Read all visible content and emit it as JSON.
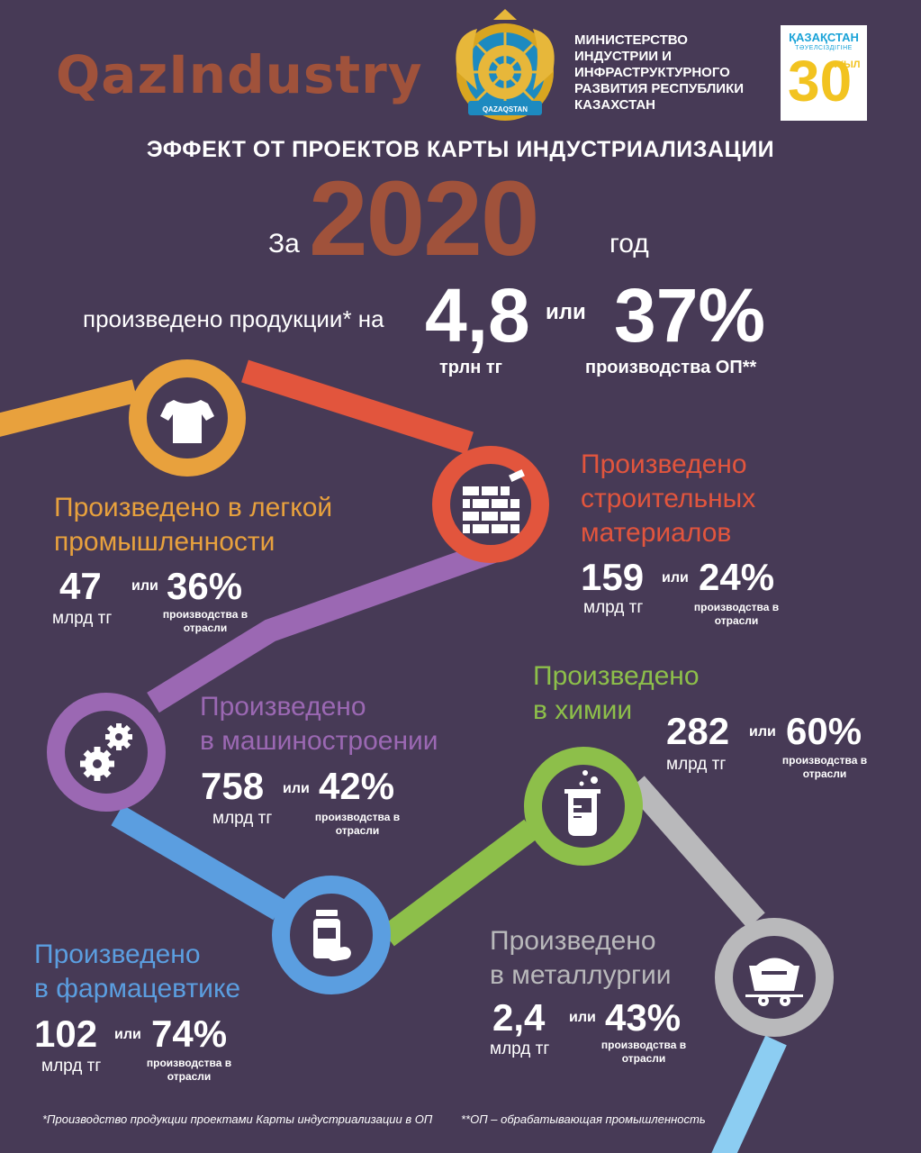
{
  "brand": {
    "logo_text": "QazIndustry"
  },
  "ministry": {
    "name": "МИНИСТЕРСТВО ИНДУСТРИИ И ИНФРАСТРУКТУРНОГО РАЗВИТИЯ РЕСПУБЛИКИ КАЗАХСТАН"
  },
  "emblem": {
    "ribbon_text": "QAZAQSTAN"
  },
  "jubilee": {
    "country": "ҚАЗАҚСТАН",
    "subtitle": "ТӘУЕЛСІЗДІГІНЕ",
    "number": "30",
    "word": "ЖЫЛ"
  },
  "headline": "ЭФФЕКТ ОТ ПРОЕКТОВ КАРТЫ ИНДУСТРИАЛИЗАЦИИ",
  "period": {
    "prefix": "За",
    "year": "2020",
    "suffix": "год"
  },
  "total": {
    "label": "произведено продукции* на",
    "value": "4,8",
    "unit": "трлн тг",
    "connector": "или",
    "share": "37%",
    "share_label": "производства ОП**"
  },
  "sectors": [
    {
      "id": "light",
      "line1": "Произведено в легкой",
      "line2": "промышленности",
      "value": "47",
      "unit": "млрд тг",
      "connector": "или",
      "share": "36%",
      "share_line1": "производства в",
      "share_line2": "отрасли",
      "color": "#e8a13d",
      "icon": "tshirt-icon"
    },
    {
      "id": "construction",
      "line1": "Произведено",
      "line2": "строительных",
      "line3": "материалов",
      "value": "159",
      "unit": "млрд тг",
      "connector": "или",
      "share": "24%",
      "share_line1": "производства в",
      "share_line2": "отрасли",
      "color": "#e2553d",
      "icon": "brick-wall-icon"
    },
    {
      "id": "machinery",
      "line1": "Произведено",
      "line2": "в машиностроении",
      "value": "758",
      "unit": "млрд тг",
      "connector": "или",
      "share": "42%",
      "share_line1": "производства в",
      "share_line2": "отрасли",
      "color": "#9b68b3",
      "icon": "gears-icon"
    },
    {
      "id": "chemistry",
      "line1": "Произведено",
      "line2": "в химии",
      "value": "282",
      "unit": "млрд тг",
      "connector": "или",
      "share": "60%",
      "share_line1": "производства в",
      "share_line2": "отрасли",
      "color": "#8dbf4a",
      "icon": "beaker-icon"
    },
    {
      "id": "pharma",
      "line1": "Произведено",
      "line2": "в фармацевтике",
      "value": "102",
      "unit": "млрд тг",
      "connector": "или",
      "share": "74%",
      "share_line1": "производства в",
      "share_line2": "отрасли",
      "color": "#5b9ee0",
      "icon": "pills-icon"
    },
    {
      "id": "metallurgy",
      "line1": "Произведено",
      "line2": "в металлургии",
      "value": "2,4",
      "unit": "млрд тг",
      "connector": "или",
      "share": "43%",
      "share_line1": "производства в",
      "share_line2": "отрасли",
      "color": "#b9b9bb",
      "icon": "mine-cart-icon"
    }
  ],
  "footnotes": {
    "note1": "*Производство продукции проектами Карты индустриализации в ОП",
    "note2": "**ОП – обрабатывающая промышленность"
  },
  "colors": {
    "background": "#473a56",
    "accent": "#a0523b",
    "last_segment": "#8ccdf2"
  }
}
